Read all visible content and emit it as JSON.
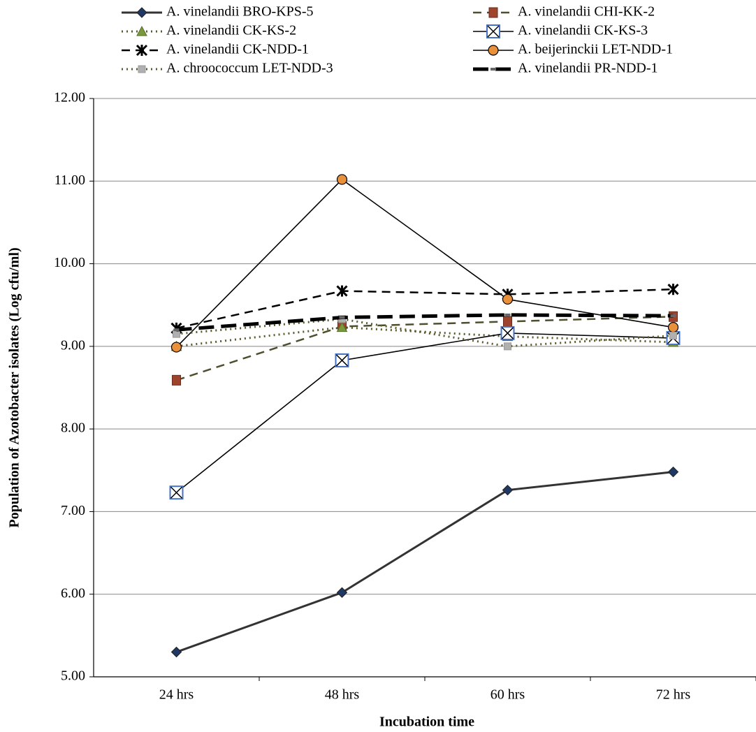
{
  "chart_data": {
    "type": "line",
    "x_label": "Incubation time",
    "y_label": "Population of Azotobacter isolates (Log cfu/ml)",
    "categories": [
      "24 hrs",
      "48 hrs",
      "60 hrs",
      "72 hrs"
    ],
    "ylim": [
      5,
      12
    ],
    "yticks": [
      {
        "value": 5,
        "label": "5.00"
      },
      {
        "value": 6,
        "label": "6.00"
      },
      {
        "value": 7,
        "label": "7.00"
      },
      {
        "value": 8,
        "label": "8.00"
      },
      {
        "value": 9,
        "label": "9.00"
      },
      {
        "value": 10,
        "label": "10.00"
      },
      {
        "value": 11,
        "label": "11.00"
      },
      {
        "value": 12,
        "label": "12.00"
      }
    ],
    "grid": true,
    "legend": "top",
    "series": [
      {
        "name": "A. vinelandii BRO-KPS-5",
        "color": "#333333",
        "marker_color": "#1f3864",
        "marker": "diamond",
        "line_style": "solid-thick",
        "values": [
          5.3,
          6.02,
          7.26,
          7.48
        ]
      },
      {
        "name": "A. vinelandii CHI-KK-2",
        "color": "#4f4f2f",
        "marker_color": "#a0432d",
        "marker": "square",
        "line_style": "dashed",
        "values": [
          8.59,
          9.24,
          9.3,
          9.36
        ]
      },
      {
        "name": "A. vinelandii CK-KS-2",
        "color": "#5a5a2a",
        "marker_color": "#7a9a3a",
        "marker": "triangle",
        "line_style": "dotted",
        "values": [
          9.0,
          9.23,
          9.12,
          9.05
        ]
      },
      {
        "name": "A. vinelandii CK-KS-3",
        "color": "#000000",
        "marker_color": "#4472c4",
        "marker": "square-x",
        "line_style": "solid",
        "values": [
          7.23,
          8.83,
          9.16,
          9.1
        ]
      },
      {
        "name": "A. vinelandii CK-NDD-1",
        "color": "#000000",
        "marker_color": "#000000",
        "marker": "star",
        "line_style": "dashed",
        "values": [
          9.22,
          9.67,
          9.63,
          9.69
        ]
      },
      {
        "name": "A. beijerinckii LET-NDD-1",
        "color": "#000000",
        "marker_color": "#e8913a",
        "marker": "circle",
        "line_style": "solid",
        "values": [
          8.99,
          11.02,
          9.57,
          9.23
        ]
      },
      {
        "name": "A. chroococcum LET-NDD-3",
        "color": "#5a5a2a",
        "marker_color": "#b0b0b0",
        "marker": "small-square",
        "line_style": "dotted",
        "values": [
          9.15,
          9.33,
          9.0,
          9.13
        ]
      },
      {
        "name": "A. vinelandii PR-NDD-1",
        "color": "#000000",
        "marker_color": "#666666",
        "marker": "dash",
        "line_style": "long-dash",
        "values": [
          9.2,
          9.35,
          9.38,
          9.37
        ]
      }
    ]
  }
}
